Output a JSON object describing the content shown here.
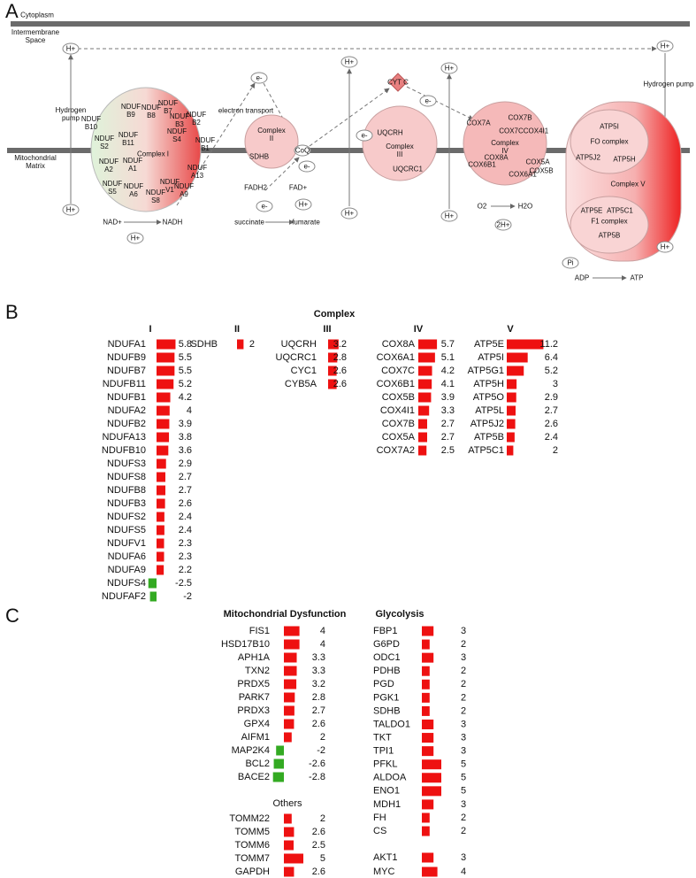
{
  "panel_labels": [
    "A",
    "B",
    "C"
  ],
  "diagram": {
    "labels": [
      "Cytoplasm",
      "Intermembrane Space",
      "Mitochondrial Matrix",
      "Hydrogen pump",
      "Hydrogen pump",
      "electron transport",
      "H+",
      "H+",
      "H+",
      "H+",
      "H+",
      "H+",
      "H+",
      "H+",
      "H+",
      "H+",
      "e-",
      "e-",
      "e-",
      "e-",
      "e-",
      "CYT C",
      "CoQ",
      "NAD+",
      "NADH",
      "FADH2",
      "FAD+",
      "succinate",
      "fumarate",
      "O2",
      "H2O",
      "2H+",
      "Pi",
      "ADP",
      "ATP",
      "NDUF B10",
      "NDUF B9",
      "NDUF B8",
      "NDUF B7",
      "NDUF B3",
      "NDUF B2",
      "NDUF S4",
      "NDUF B11",
      "Complex I",
      "NDUF B1",
      "NDUF S2",
      "NDUF A2",
      "NDUF A1",
      "NDUF A13",
      "NDUF S5",
      "NDUF A6",
      "NDUF S8",
      "NDUF V1",
      "NDUF A9",
      "Complex II",
      "SDHB",
      "UQCRH",
      "Complex III",
      "UQCRC1",
      "COX7B",
      "COX7A",
      "COX7C",
      "COX4I1",
      "Complex IV",
      "COX8A",
      "COX5A",
      "COX6B1",
      "COX5B",
      "COX6A1",
      "ATP5I",
      "FO complex",
      "ATP5J2",
      "ATP5H",
      "Complex V",
      "ATP5E",
      "ATP5C1",
      "F1 complex",
      "ATP5B"
    ]
  },
  "complex_heading": "Complex",
  "chart_data": [
    {
      "type": "bar",
      "orientation": "horizontal",
      "title": "I",
      "color": "#ee1111",
      "negative_color": "#33aa22",
      "categories": [
        "NDUFA1",
        "NDUFB9",
        "NDUFB7",
        "NDUFB11",
        "NDUFB1",
        "NDUFA2",
        "NDUFB2",
        "NDUFA13",
        "NDUFB10",
        "NDUFS3",
        "NDUFS8",
        "NDUFB8",
        "NDUFB3",
        "NDUFS2",
        "NDUFS5",
        "NDUFV1",
        "NDUFA6",
        "NDUFA9",
        "NDUFS4",
        "NDUFAF2"
      ],
      "values": [
        5.8,
        5.5,
        5.5,
        5.2,
        4.2,
        4,
        3.9,
        3.8,
        3.6,
        2.9,
        2.7,
        2.7,
        2.6,
        2.4,
        2.4,
        2.3,
        2.3,
        2.2,
        -2.5,
        -2
      ]
    },
    {
      "type": "bar",
      "orientation": "horizontal",
      "title": "II",
      "color": "#ee1111",
      "negative_color": "#33aa22",
      "categories": [
        "SDHB"
      ],
      "values": [
        2
      ]
    },
    {
      "type": "bar",
      "orientation": "horizontal",
      "title": "III",
      "color": "#ee1111",
      "negative_color": "#33aa22",
      "categories": [
        "UQCRH",
        "UQCRC1",
        "CYC1",
        "CYB5A"
      ],
      "values": [
        3.2,
        2.8,
        2.6,
        2.6
      ]
    },
    {
      "type": "bar",
      "orientation": "horizontal",
      "title": "IV",
      "color": "#ee1111",
      "negative_color": "#33aa22",
      "categories": [
        "COX8A",
        "COX6A1",
        "COX7C",
        "COX6B1",
        "COX5B",
        "COX4I1",
        "COX7B",
        "COX5A",
        "COX7A2"
      ],
      "values": [
        5.7,
        5.1,
        4.2,
        4.1,
        3.9,
        3.3,
        2.7,
        2.7,
        2.5
      ]
    },
    {
      "type": "bar",
      "orientation": "horizontal",
      "title": "V",
      "color": "#ee1111",
      "negative_color": "#33aa22",
      "categories": [
        "ATP5E",
        "ATP5I",
        "ATP5G1",
        "ATP5H",
        "ATP5O",
        "ATP5L",
        "ATP5J2",
        "ATP5B",
        "ATP5C1"
      ],
      "values": [
        11.2,
        6.4,
        5.2,
        3,
        2.9,
        2.7,
        2.6,
        2.4,
        2
      ]
    },
    {
      "type": "bar",
      "orientation": "horizontal",
      "title": "Mitochondrial Dysfunction",
      "color": "#ee1111",
      "negative_color": "#33aa22",
      "categories": [
        "FIS1",
        "HSD17B10",
        "APH1A",
        "TXN2",
        "PRDX5",
        "PARK7",
        "PRDX3",
        "GPX4",
        "AIFM1",
        "MAP2K4",
        "BCL2",
        "BACE2"
      ],
      "values": [
        4,
        4,
        3.3,
        3.3,
        3.2,
        2.8,
        2.7,
        2.6,
        2,
        -2,
        -2.6,
        -2.8
      ]
    },
    {
      "type": "bar",
      "orientation": "horizontal",
      "title": "Others",
      "color": "#ee1111",
      "negative_color": "#33aa22",
      "categories": [
        "TOMM22",
        "TOMM5",
        "TOMM6",
        "TOMM7",
        "GAPDH"
      ],
      "values": [
        2,
        2.6,
        2.5,
        5,
        2.6
      ]
    },
    {
      "type": "bar",
      "orientation": "horizontal",
      "title": "Glycolysis",
      "color": "#ee1111",
      "negative_color": "#33aa22",
      "categories": [
        "FBP1",
        "G6PD",
        "ODC1",
        "PDHB",
        "PGD",
        "PGK1",
        "SDHB",
        "TALDO1",
        "TKT",
        "TPI1",
        "PFKL",
        "ALDOA",
        "ENO1",
        "MDH1",
        "FH",
        "CS"
      ],
      "values": [
        3,
        2,
        3,
        2,
        2,
        2,
        2,
        3,
        3,
        3,
        5,
        5,
        5,
        3,
        2,
        2
      ]
    },
    {
      "type": "bar",
      "orientation": "horizontal",
      "color": "#ee1111",
      "negative_color": "#33aa22",
      "categories": [
        "AKT1",
        "MYC"
      ],
      "values": [
        3,
        4
      ]
    }
  ]
}
